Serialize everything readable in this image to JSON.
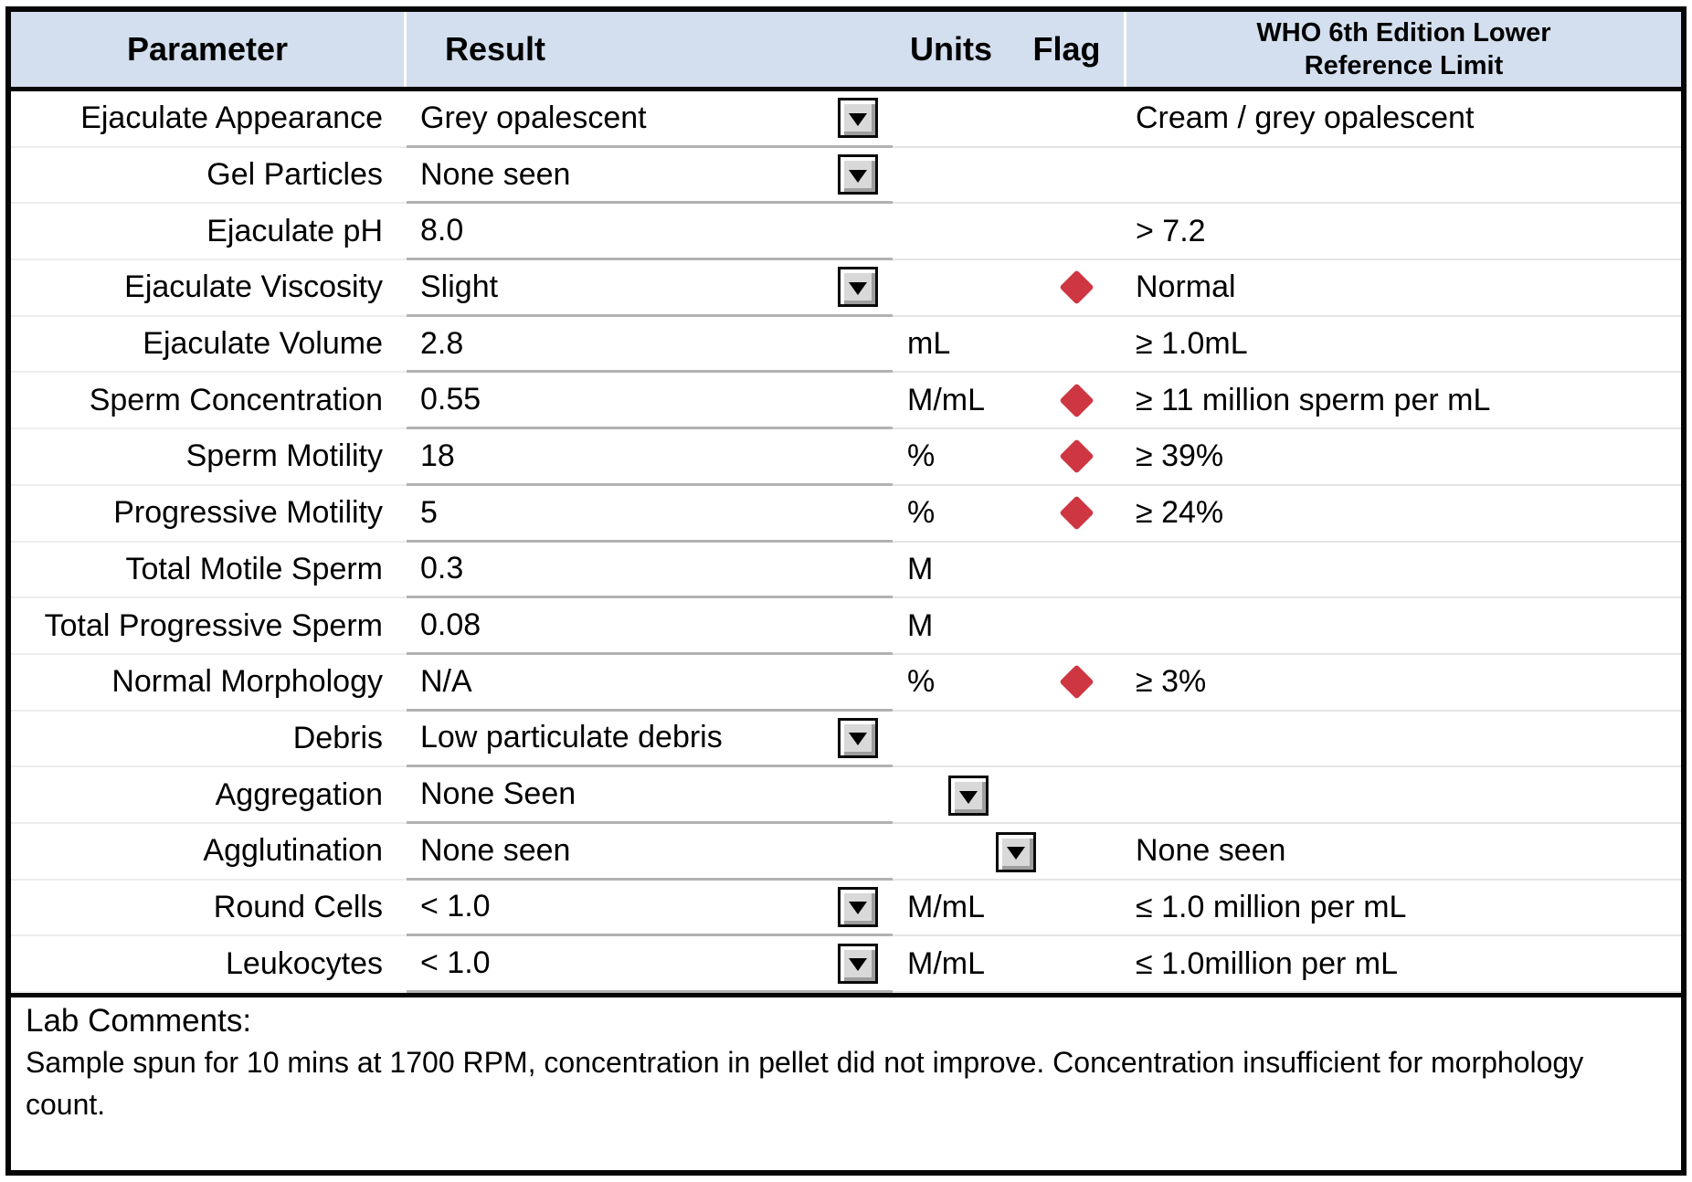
{
  "colors": {
    "header_bg": "#d3dfee",
    "flag_red": "#ce3642",
    "border_black": "#060606",
    "result_underline_gray": "#b2b2b2"
  },
  "header": {
    "parameter": "Parameter",
    "result": "Result",
    "units": "Units",
    "flag": "Flag",
    "reference_line1": "WHO 6th Edition Lower",
    "reference_line2": "Reference Limit"
  },
  "rows": [
    {
      "param": "Ejaculate Appearance",
      "result": "Grey opalescent",
      "dropdown": true,
      "dropdown_pos": "result",
      "units": "",
      "flag": false,
      "reference": "Cream / grey opalescent"
    },
    {
      "param": "Gel Particles",
      "result": "None seen",
      "dropdown": true,
      "dropdown_pos": "result",
      "units": "",
      "flag": false,
      "reference": ""
    },
    {
      "param": "Ejaculate pH",
      "result": "8.0",
      "dropdown": false,
      "dropdown_pos": "",
      "units": "",
      "flag": false,
      "reference": ">  7.2"
    },
    {
      "param": "Ejaculate Viscosity",
      "result": "Slight",
      "dropdown": true,
      "dropdown_pos": "result",
      "units": "",
      "flag": true,
      "reference": "Normal"
    },
    {
      "param": "Ejaculate Volume",
      "result": "2.8",
      "dropdown": false,
      "dropdown_pos": "",
      "units": "mL",
      "flag": false,
      "reference": "≥  1.0mL"
    },
    {
      "param": "Sperm Concentration",
      "result": "0.55",
      "dropdown": false,
      "dropdown_pos": "",
      "units": "M/mL",
      "flag": true,
      "reference": "≥  11 million sperm per mL"
    },
    {
      "param": "Sperm Motility",
      "result": "18",
      "dropdown": false,
      "dropdown_pos": "",
      "units": "%",
      "flag": true,
      "reference": "≥  39%"
    },
    {
      "param": "Progressive Motility",
      "result": "5",
      "dropdown": false,
      "dropdown_pos": "",
      "units": "%",
      "flag": true,
      "reference": "≥  24%"
    },
    {
      "param": "Total Motile Sperm",
      "result": "0.3",
      "dropdown": false,
      "dropdown_pos": "",
      "units": "M",
      "flag": false,
      "reference": ""
    },
    {
      "param": "Total Progressive Sperm",
      "result": "0.08",
      "dropdown": false,
      "dropdown_pos": "",
      "units": "M",
      "flag": false,
      "reference": ""
    },
    {
      "param": "Normal Morphology",
      "result": "N/A",
      "dropdown": false,
      "dropdown_pos": "",
      "units": "%",
      "flag": true,
      "reference": "≥  3%"
    },
    {
      "param": "Debris",
      "result": "Low particulate debris",
      "dropdown": true,
      "dropdown_pos": "result",
      "units": "",
      "flag": false,
      "reference": ""
    },
    {
      "param": "Aggregation",
      "result": "None Seen",
      "dropdown": true,
      "dropdown_pos": "units",
      "units": "",
      "flag": false,
      "reference": ""
    },
    {
      "param": "Agglutination",
      "result": "None seen",
      "dropdown": true,
      "dropdown_pos": "flag",
      "units": "",
      "flag": false,
      "reference": "None seen"
    },
    {
      "param": "Round Cells",
      "result": "< 1.0",
      "dropdown": true,
      "dropdown_pos": "result",
      "units": "M/mL",
      "flag": false,
      "reference": "≤ 1.0 million per mL"
    },
    {
      "param": "Leukocytes",
      "result": "< 1.0",
      "dropdown": true,
      "dropdown_pos": "result",
      "units": "M/mL",
      "flag": false,
      "reference": "≤  1.0million per mL"
    }
  ],
  "comments": {
    "label": "Lab Comments:",
    "text": "Sample spun for 10 mins at 1700 RPM, concentration in pellet did not improve. Concentration insufficient for morphology count."
  }
}
